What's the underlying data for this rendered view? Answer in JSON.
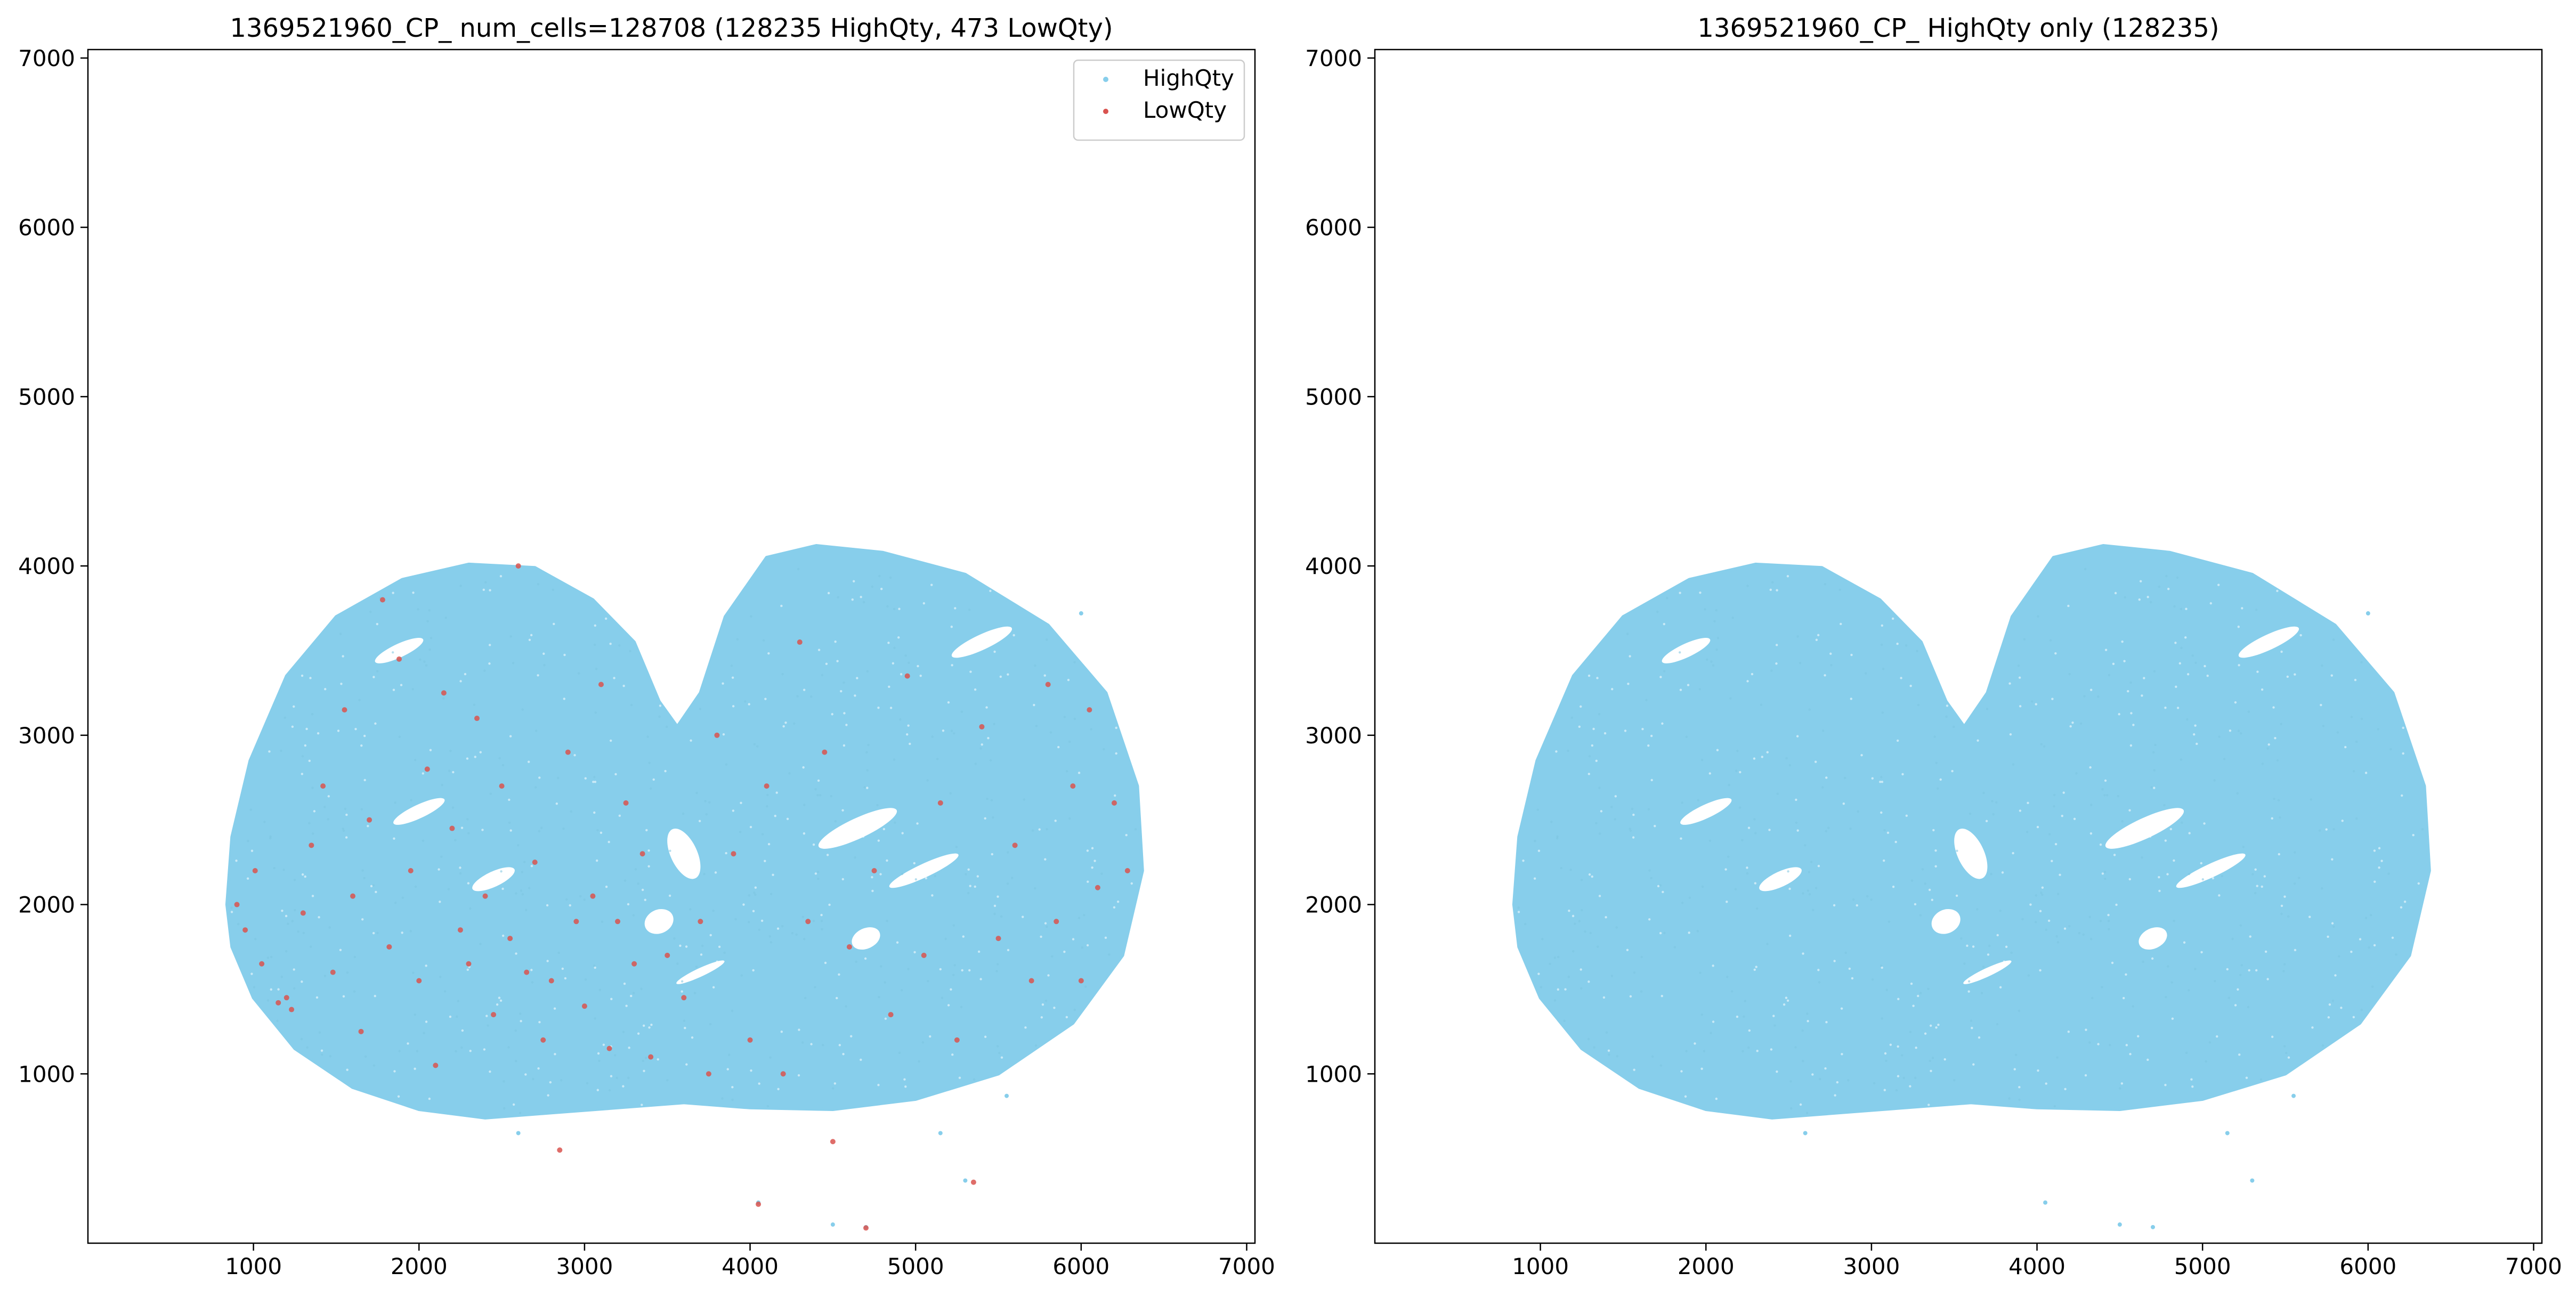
{
  "chart_data": [
    {
      "type": "scatter",
      "title": "1369521960_CP_ num_cells=128708 (128235 HighQty, 473 LowQty)",
      "xlabel": "",
      "ylabel": "",
      "xlim": [
        0,
        7050
      ],
      "ylim": [
        0,
        7050
      ],
      "xticks": [
        1000,
        2000,
        3000,
        4000,
        5000,
        6000,
        7000
      ],
      "yticks": [
        1000,
        2000,
        3000,
        4000,
        5000,
        6000,
        7000
      ],
      "grid": false,
      "legend": {
        "placement": "top-right",
        "entries": [
          "HighQty",
          "LowQty"
        ]
      },
      "series": [
        {
          "name": "HighQty",
          "color": "#87ceeb",
          "count": 128235,
          "region_outline": [
            [
              840,
              2000
            ],
            [
              870,
              2400
            ],
            [
              980,
              2850
            ],
            [
              1200,
              3350
            ],
            [
              1500,
              3700
            ],
            [
              1900,
              3920
            ],
            [
              2300,
              4010
            ],
            [
              2700,
              3990
            ],
            [
              3050,
              3800
            ],
            [
              3300,
              3550
            ],
            [
              3450,
              3200
            ],
            [
              3560,
              3050
            ],
            [
              3700,
              3250
            ],
            [
              3850,
              3700
            ],
            [
              4100,
              4050
            ],
            [
              4400,
              4120
            ],
            [
              4800,
              4080
            ],
            [
              5300,
              3950
            ],
            [
              5800,
              3650
            ],
            [
              6150,
              3250
            ],
            [
              6340,
              2700
            ],
            [
              6370,
              2200
            ],
            [
              6250,
              1700
            ],
            [
              5950,
              1300
            ],
            [
              5500,
              1000
            ],
            [
              5000,
              850
            ],
            [
              4500,
              790
            ],
            [
              4000,
              800
            ],
            [
              3600,
              830
            ],
            [
              3200,
              800
            ],
            [
              2800,
              770
            ],
            [
              2400,
              740
            ],
            [
              2000,
              790
            ],
            [
              1600,
              920
            ],
            [
              1250,
              1150
            ],
            [
              1000,
              1450
            ],
            [
              870,
              1750
            ]
          ]
        },
        {
          "name": "LowQty",
          "color": "#d9534f",
          "count": 473,
          "points": [
            [
              900,
              2000
            ],
            [
              950,
              1850
            ],
            [
              1010,
              2200
            ],
            [
              1050,
              1650
            ],
            [
              1150,
              1420
            ],
            [
              1200,
              1450
            ],
            [
              1230,
              1380
            ],
            [
              1300,
              1950
            ],
            [
              1350,
              2350
            ],
            [
              1420,
              2700
            ],
            [
              1480,
              1600
            ],
            [
              1550,
              3150
            ],
            [
              1600,
              2050
            ],
            [
              1650,
              1250
            ],
            [
              1700,
              2500
            ],
            [
              1780,
              3800
            ],
            [
              1820,
              1750
            ],
            [
              1880,
              3450
            ],
            [
              1950,
              2200
            ],
            [
              2000,
              1550
            ],
            [
              2050,
              2800
            ],
            [
              2100,
              1050
            ],
            [
              2150,
              3250
            ],
            [
              2200,
              2450
            ],
            [
              2250,
              1850
            ],
            [
              2300,
              1650
            ],
            [
              2350,
              3100
            ],
            [
              2400,
              2050
            ],
            [
              2450,
              1350
            ],
            [
              2500,
              2700
            ],
            [
              2550,
              1800
            ],
            [
              2600,
              4000
            ],
            [
              2650,
              1600
            ],
            [
              2700,
              2250
            ],
            [
              2750,
              1200
            ],
            [
              2800,
              1550
            ],
            [
              2850,
              550
            ],
            [
              2900,
              2900
            ],
            [
              2950,
              1900
            ],
            [
              3000,
              1400
            ],
            [
              3050,
              2050
            ],
            [
              3100,
              3300
            ],
            [
              3150,
              1150
            ],
            [
              3200,
              1900
            ],
            [
              3250,
              2600
            ],
            [
              3300,
              1650
            ],
            [
              3350,
              2300
            ],
            [
              3400,
              1100
            ],
            [
              3500,
              1700
            ],
            [
              3600,
              1450
            ],
            [
              3700,
              1900
            ],
            [
              3750,
              1000
            ],
            [
              3800,
              3000
            ],
            [
              3900,
              2300
            ],
            [
              4000,
              1200
            ],
            [
              4050,
              230
            ],
            [
              4100,
              2700
            ],
            [
              4200,
              1000
            ],
            [
              4300,
              3550
            ],
            [
              4350,
              1900
            ],
            [
              4450,
              2900
            ],
            [
              4500,
              600
            ],
            [
              4600,
              1750
            ],
            [
              4700,
              90
            ],
            [
              4750,
              2200
            ],
            [
              4850,
              1350
            ],
            [
              4950,
              3350
            ],
            [
              5050,
              1700
            ],
            [
              5150,
              2600
            ],
            [
              5250,
              1200
            ],
            [
              5350,
              360
            ],
            [
              5400,
              3050
            ],
            [
              5500,
              1800
            ],
            [
              5600,
              2350
            ],
            [
              5700,
              1550
            ],
            [
              5800,
              3300
            ],
            [
              5850,
              1900
            ],
            [
              5950,
              2700
            ],
            [
              6000,
              1550
            ],
            [
              6050,
              3150
            ],
            [
              6100,
              2100
            ],
            [
              6200,
              2600
            ],
            [
              6280,
              2200
            ]
          ]
        }
      ]
    },
    {
      "type": "scatter",
      "title": "1369521960_CP_ HighQty only (128235)",
      "xlabel": "",
      "ylabel": "",
      "xlim": [
        0,
        7050
      ],
      "ylim": [
        0,
        7050
      ],
      "xticks": [
        1000,
        2000,
        3000,
        4000,
        5000,
        6000,
        7000
      ],
      "yticks": [
        1000,
        2000,
        3000,
        4000,
        5000,
        6000,
        7000
      ],
      "grid": false,
      "series": [
        {
          "color": "#87ceeb",
          "count": 128235,
          "region_outline": [
            [
              840,
              2000
            ],
            [
              870,
              2400
            ],
            [
              980,
              2850
            ],
            [
              1200,
              3350
            ],
            [
              1500,
              3700
            ],
            [
              1900,
              3920
            ],
            [
              2300,
              4010
            ],
            [
              2700,
              3990
            ],
            [
              3050,
              3800
            ],
            [
              3300,
              3550
            ],
            [
              3450,
              3200
            ],
            [
              3560,
              3050
            ],
            [
              3700,
              3250
            ],
            [
              3850,
              3700
            ],
            [
              4100,
              4050
            ],
            [
              4400,
              4120
            ],
            [
              4800,
              4080
            ],
            [
              5300,
              3950
            ],
            [
              5800,
              3650
            ],
            [
              6150,
              3250
            ],
            [
              6340,
              2700
            ],
            [
              6370,
              2200
            ],
            [
              6250,
              1700
            ],
            [
              5950,
              1300
            ],
            [
              5500,
              1000
            ],
            [
              5000,
              850
            ],
            [
              4500,
              790
            ],
            [
              4000,
              800
            ],
            [
              3600,
              830
            ],
            [
              3200,
              800
            ],
            [
              2800,
              770
            ],
            [
              2400,
              740
            ],
            [
              2000,
              790
            ],
            [
              1600,
              920
            ],
            [
              1250,
              1150
            ],
            [
              1000,
              1450
            ],
            [
              870,
              1750
            ]
          ]
        }
      ]
    }
  ]
}
